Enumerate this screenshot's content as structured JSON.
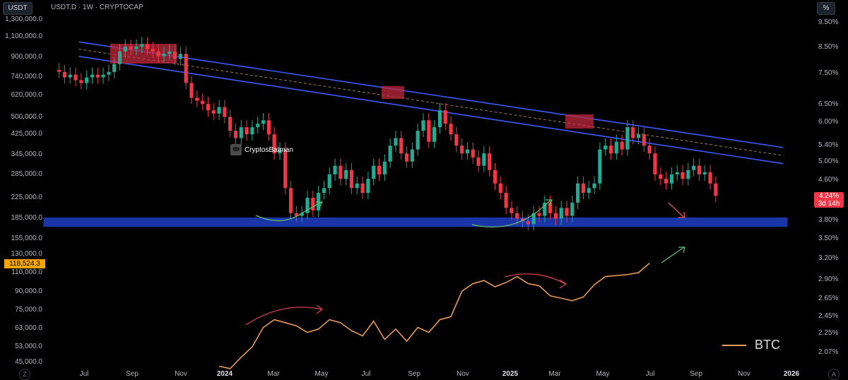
{
  "header": {
    "symbol_button": "USDT",
    "title": "USDT.D · 1W · CRYPTOCAP",
    "scale_button": "%"
  },
  "current_price": {
    "value": "4.24%",
    "countdown": "3d 14h"
  },
  "btc_current_price": "118,524.3",
  "watermark": "CryptosBatman",
  "legend_label": "BTC",
  "corner_left": "Z",
  "corner_right": "A",
  "colors": {
    "up": "#22ab94",
    "down": "#f23645",
    "channel": "#3d5afe",
    "support": "#1a35a8",
    "btc_line": "#f5a05a",
    "resistance_box": "#c0283c"
  },
  "chart_data": [
    {
      "type": "line",
      "series": [
        {
          "name": "BTC",
          "x": [
            "2024-01-08",
            "2024-01-22",
            "2024-02-05",
            "2024-02-19",
            "2024-03-04",
            "2024-03-18",
            "2024-04-01",
            "2024-04-15",
            "2024-04-29",
            "2024-05-13",
            "2024-05-27",
            "2024-06-10",
            "2024-06-24",
            "2024-07-08",
            "2024-07-22",
            "2024-08-05",
            "2024-08-19",
            "2024-09-02",
            "2024-09-16",
            "2024-09-30",
            "2024-10-14",
            "2024-10-28",
            "2024-11-11",
            "2024-11-25",
            "2024-12-09",
            "2024-12-23",
            "2025-01-06",
            "2025-01-20",
            "2025-02-03",
            "2025-02-17",
            "2025-03-03",
            "2025-03-17",
            "2025-03-31",
            "2025-04-14",
            "2025-04-28",
            "2025-05-12",
            "2025-05-26",
            "2025-06-09",
            "2025-06-23",
            "2025-07-07"
          ],
          "y": [
            43000,
            42000,
            47000,
            52000,
            63000,
            68000,
            66000,
            64000,
            60000,
            62000,
            68000,
            66000,
            61000,
            58000,
            67000,
            56000,
            62000,
            55000,
            63000,
            60000,
            68000,
            70000,
            90000,
            97000,
            100000,
            94000,
            98000,
            104000,
            97000,
            95000,
            86000,
            84000,
            82000,
            85000,
            96000,
            104000,
            105000,
            106000,
            108000,
            118524
          ]
        }
      ],
      "ylim": [
        45000,
        1300000
      ],
      "ylabels": [
        "1,300,000.0",
        "1,100,000.0",
        "900,000.0",
        "740,000.0",
        "620,000.0",
        "500,000.0",
        "425,000.0",
        "345,000.0",
        "285,000.0",
        "225,000.0",
        "185,000.0",
        "155,000.0",
        "130,000.0",
        "110,000.0",
        "90,000.0",
        "75,000.0",
        "63,000.0",
        "53,000.0",
        "45,000.0"
      ]
    },
    {
      "type": "candlestick",
      "title": "USDT.D · 1W · CRYPTOCAP",
      "ylim": [
        2.0,
        9.8
      ],
      "ylabels": [
        "9.50%",
        "8.50%",
        "7.50%",
        "6.50%",
        "6.00%",
        "5.40%",
        "5.00%",
        "4.60%",
        "4.20%",
        "3.80%",
        "3.50%",
        "3.20%",
        "2.90%",
        "2.65%",
        "2.45%",
        "2.25%",
        "2.07%"
      ],
      "xlabels": [
        "Jul",
        "Sep",
        "Nov",
        "2024",
        "Mar",
        "May",
        "Jul",
        "Sep",
        "Nov",
        "2025",
        "Mar",
        "May",
        "Jul",
        "Sep",
        "Nov",
        "2026"
      ],
      "closes": [
        7.7,
        7.5,
        7.6,
        7.4,
        7.3,
        7.5,
        7.6,
        7.5,
        7.6,
        7.7,
        8.0,
        8.5,
        8.7,
        8.6,
        8.7,
        8.8,
        8.6,
        8.5,
        8.3,
        8.4,
        8.5,
        8.2,
        8.4,
        7.3,
        6.8,
        6.7,
        6.6,
        6.4,
        6.3,
        6.5,
        6.2,
        5.8,
        5.6,
        5.9,
        5.7,
        5.9,
        6.0,
        6.1,
        5.7,
        5.2,
        5.3,
        4.4,
        3.9,
        3.85,
        3.9,
        4.2,
        3.95,
        4.3,
        4.4,
        4.7,
        4.9,
        4.6,
        4.8,
        4.4,
        4.5,
        4.3,
        4.6,
        4.9,
        4.7,
        5.0,
        5.4,
        5.6,
        5.2,
        5.0,
        5.3,
        5.8,
        6.1,
        5.5,
        5.9,
        6.4,
        6.0,
        5.7,
        5.4,
        5.2,
        5.3,
        5.1,
        4.9,
        5.2,
        4.8,
        4.5,
        4.3,
        4.0,
        3.9,
        3.8,
        3.75,
        3.7,
        3.9,
        3.85,
        4.1,
        3.9,
        3.8,
        4.0,
        3.85,
        4.1,
        4.5,
        4.3,
        4.4,
        4.5,
        5.3,
        5.4,
        5.2,
        5.5,
        5.3,
        5.9,
        5.6,
        5.7,
        5.4,
        5.2,
        4.7,
        4.6,
        4.5,
        4.7,
        4.75,
        4.6,
        4.8,
        4.9,
        4.7,
        4.75,
        4.5,
        4.24
      ],
      "start_date": "2023-06-19",
      "channel_upper": [
        {
          "x": "2023-06-26",
          "y": 8.9
        },
        {
          "x": "2025-12-29",
          "y": 5.35
        }
      ],
      "channel_lower": [
        {
          "x": "2023-06-26",
          "y": 8.3
        },
        {
          "x": "2025-12-29",
          "y": 4.95
        }
      ],
      "support_zone": {
        "from": "2023-06-26",
        "to": "2025-12-29",
        "ylow": 3.65,
        "yhigh": 3.82
      }
    }
  ]
}
